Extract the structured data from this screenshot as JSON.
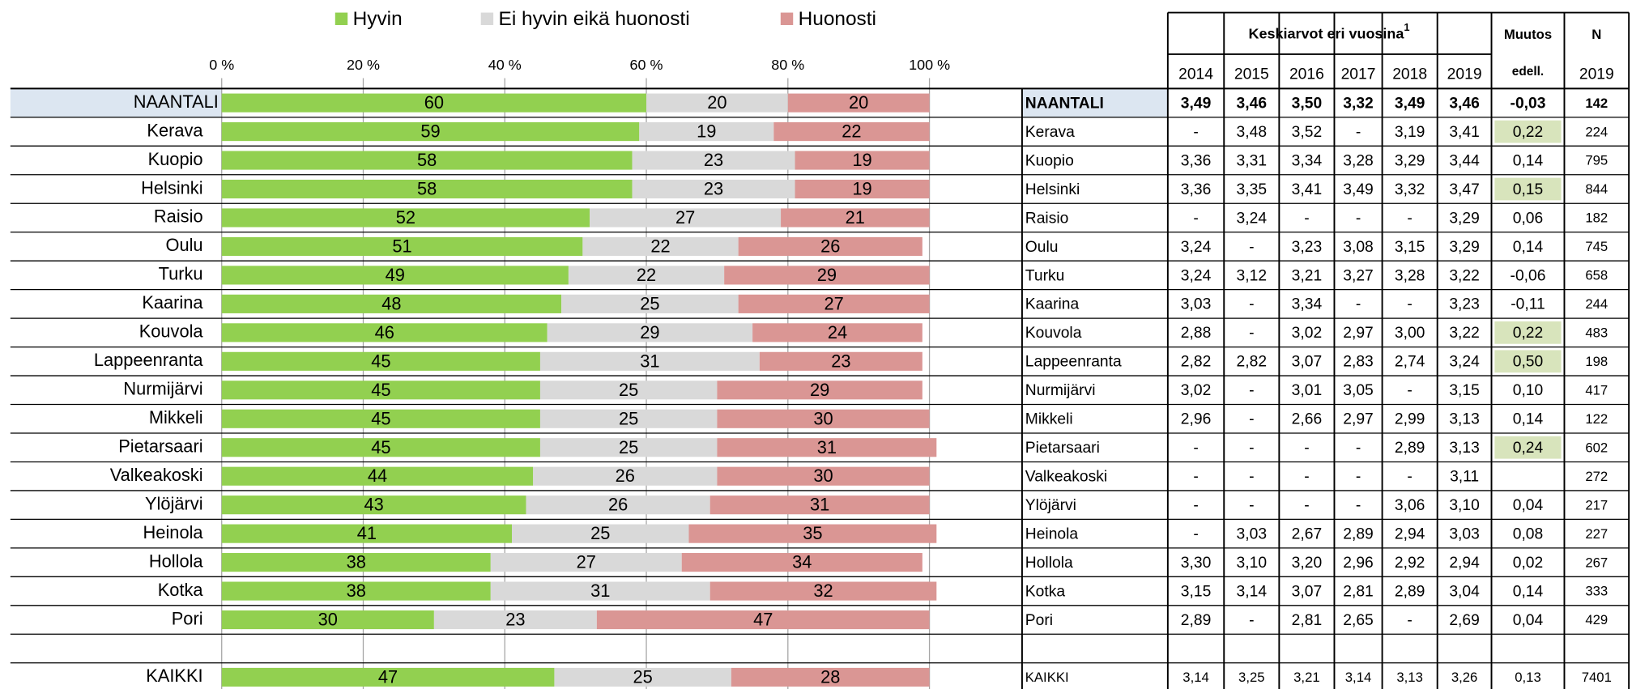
{
  "chart_data": {
    "type": "stacked_barh",
    "categories": [
      "NAANTALI",
      "Kerava",
      "Kuopio",
      "Helsinki",
      "Raisio",
      "Oulu",
      "Turku",
      "Kaarina",
      "Kouvola",
      "Lappeenranta",
      "Nurmijärvi",
      "Mikkeli",
      "Pietarsaari",
      "Valkeakoski",
      "Ylöjärvi",
      "Heinola",
      "Hollola",
      "Kotka",
      "Pori",
      null,
      "KAIKKI"
    ],
    "series": [
      {
        "name": "Hyvin",
        "color": "#92d050",
        "values": [
          60,
          59,
          58,
          58,
          52,
          51,
          49,
          48,
          46,
          45,
          45,
          45,
          45,
          44,
          43,
          41,
          38,
          38,
          30,
          null,
          47
        ]
      },
      {
        "name": "Ei hyvin eikä huonosti",
        "color": "#d9d9d9",
        "values": [
          20,
          19,
          23,
          23,
          27,
          22,
          22,
          25,
          29,
          31,
          25,
          25,
          25,
          26,
          26,
          25,
          27,
          31,
          23,
          null,
          25
        ]
      },
      {
        "name": "Huonosti",
        "color": "#da9694",
        "values": [
          20,
          22,
          19,
          19,
          21,
          26,
          29,
          27,
          24,
          23,
          29,
          30,
          31,
          30,
          31,
          35,
          34,
          32,
          47,
          null,
          28
        ]
      }
    ],
    "xlim": [
      0,
      100
    ],
    "xticks": [
      {
        "value": 0,
        "label": "0 %"
      },
      {
        "value": 20,
        "label": "20 %"
      },
      {
        "value": 40,
        "label": "40 %"
      },
      {
        "value": 60,
        "label": "60 %"
      },
      {
        "value": 80,
        "label": "80 %"
      },
      {
        "value": 100,
        "label": "100 %"
      }
    ],
    "grid": true,
    "legend": "top"
  },
  "table": {
    "header": {
      "group": "Keskiarvot eri vuosina",
      "footnote_mark": "1",
      "years": [
        "2014",
        "2015",
        "2016",
        "2017",
        "2018",
        "2019"
      ],
      "change": "Muutos",
      "change_sub": "edell.",
      "n": "N",
      "n_sub": "2019"
    },
    "rows": [
      {
        "name": "NAANTALI",
        "values": [
          "3,49",
          "3,46",
          "3,50",
          "3,32",
          "3,49",
          "3,46"
        ],
        "change": "-0,03",
        "n": "142"
      },
      {
        "name": "Kerava",
        "values": [
          "-",
          "3,48",
          "3,52",
          "-",
          "3,19",
          "3,41"
        ],
        "change": "0,22",
        "n": "224",
        "highlight": true
      },
      {
        "name": "Kuopio",
        "values": [
          "3,36",
          "3,31",
          "3,34",
          "3,28",
          "3,29",
          "3,44"
        ],
        "change": "0,14",
        "n": "795"
      },
      {
        "name": "Helsinki",
        "values": [
          "3,36",
          "3,35",
          "3,41",
          "3,49",
          "3,32",
          "3,47"
        ],
        "change": "0,15",
        "n": "844",
        "highlight": true
      },
      {
        "name": "Raisio",
        "values": [
          "-",
          "3,24",
          "-",
          "-",
          "-",
          "3,29"
        ],
        "change": "0,06",
        "n": "182"
      },
      {
        "name": "Oulu",
        "values": [
          "3,24",
          "-",
          "3,23",
          "3,08",
          "3,15",
          "3,29"
        ],
        "change": "0,14",
        "n": "745"
      },
      {
        "name": "Turku",
        "values": [
          "3,24",
          "3,12",
          "3,21",
          "3,27",
          "3,28",
          "3,22"
        ],
        "change": "-0,06",
        "n": "658"
      },
      {
        "name": "Kaarina",
        "values": [
          "3,03",
          "-",
          "3,34",
          "-",
          "-",
          "3,23"
        ],
        "change": "-0,11",
        "n": "244"
      },
      {
        "name": "Kouvola",
        "values": [
          "2,88",
          "-",
          "3,02",
          "2,97",
          "3,00",
          "3,22"
        ],
        "change": "0,22",
        "n": "483",
        "highlight": true
      },
      {
        "name": "Lappeenranta",
        "values": [
          "2,82",
          "2,82",
          "3,07",
          "2,83",
          "2,74",
          "3,24"
        ],
        "change": "0,50",
        "n": "198",
        "highlight": true
      },
      {
        "name": "Nurmijärvi",
        "values": [
          "3,02",
          "-",
          "3,01",
          "3,05",
          "-",
          "3,15"
        ],
        "change": "0,10",
        "n": "417"
      },
      {
        "name": "Mikkeli",
        "values": [
          "2,96",
          "-",
          "2,66",
          "2,97",
          "2,99",
          "3,13"
        ],
        "change": "0,14",
        "n": "122"
      },
      {
        "name": "Pietarsaari",
        "values": [
          "-",
          "-",
          "-",
          "-",
          "2,89",
          "3,13"
        ],
        "change": "0,24",
        "n": "602",
        "highlight": true
      },
      {
        "name": "Valkeakoski",
        "values": [
          "-",
          "-",
          "-",
          "-",
          "-",
          "3,11"
        ],
        "change": null,
        "n": "272"
      },
      {
        "name": "Ylöjärvi",
        "values": [
          "-",
          "-",
          "-",
          "-",
          "3,06",
          "3,10"
        ],
        "change": "0,04",
        "n": "217"
      },
      {
        "name": "Heinola",
        "values": [
          "-",
          "3,03",
          "2,67",
          "2,89",
          "2,94",
          "3,03"
        ],
        "change": "0,08",
        "n": "227"
      },
      {
        "name": "Hollola",
        "values": [
          "3,30",
          "3,10",
          "3,20",
          "2,96",
          "2,92",
          "2,94"
        ],
        "change": "0,02",
        "n": "267"
      },
      {
        "name": "Kotka",
        "values": [
          "3,15",
          "3,14",
          "3,07",
          "2,81",
          "2,89",
          "3,04"
        ],
        "change": "0,14",
        "n": "333"
      },
      {
        "name": "Pori",
        "values": [
          "2,89",
          "-",
          "2,81",
          "2,65",
          "-",
          "2,69"
        ],
        "change": "0,04",
        "n": "429"
      }
    ],
    "total": {
      "name": "KAIKKI",
      "values": [
        "3,14",
        "3,25",
        "3,21",
        "3,14",
        "3,13",
        "3,26"
      ],
      "change": "0,13",
      "n": "7401"
    }
  }
}
